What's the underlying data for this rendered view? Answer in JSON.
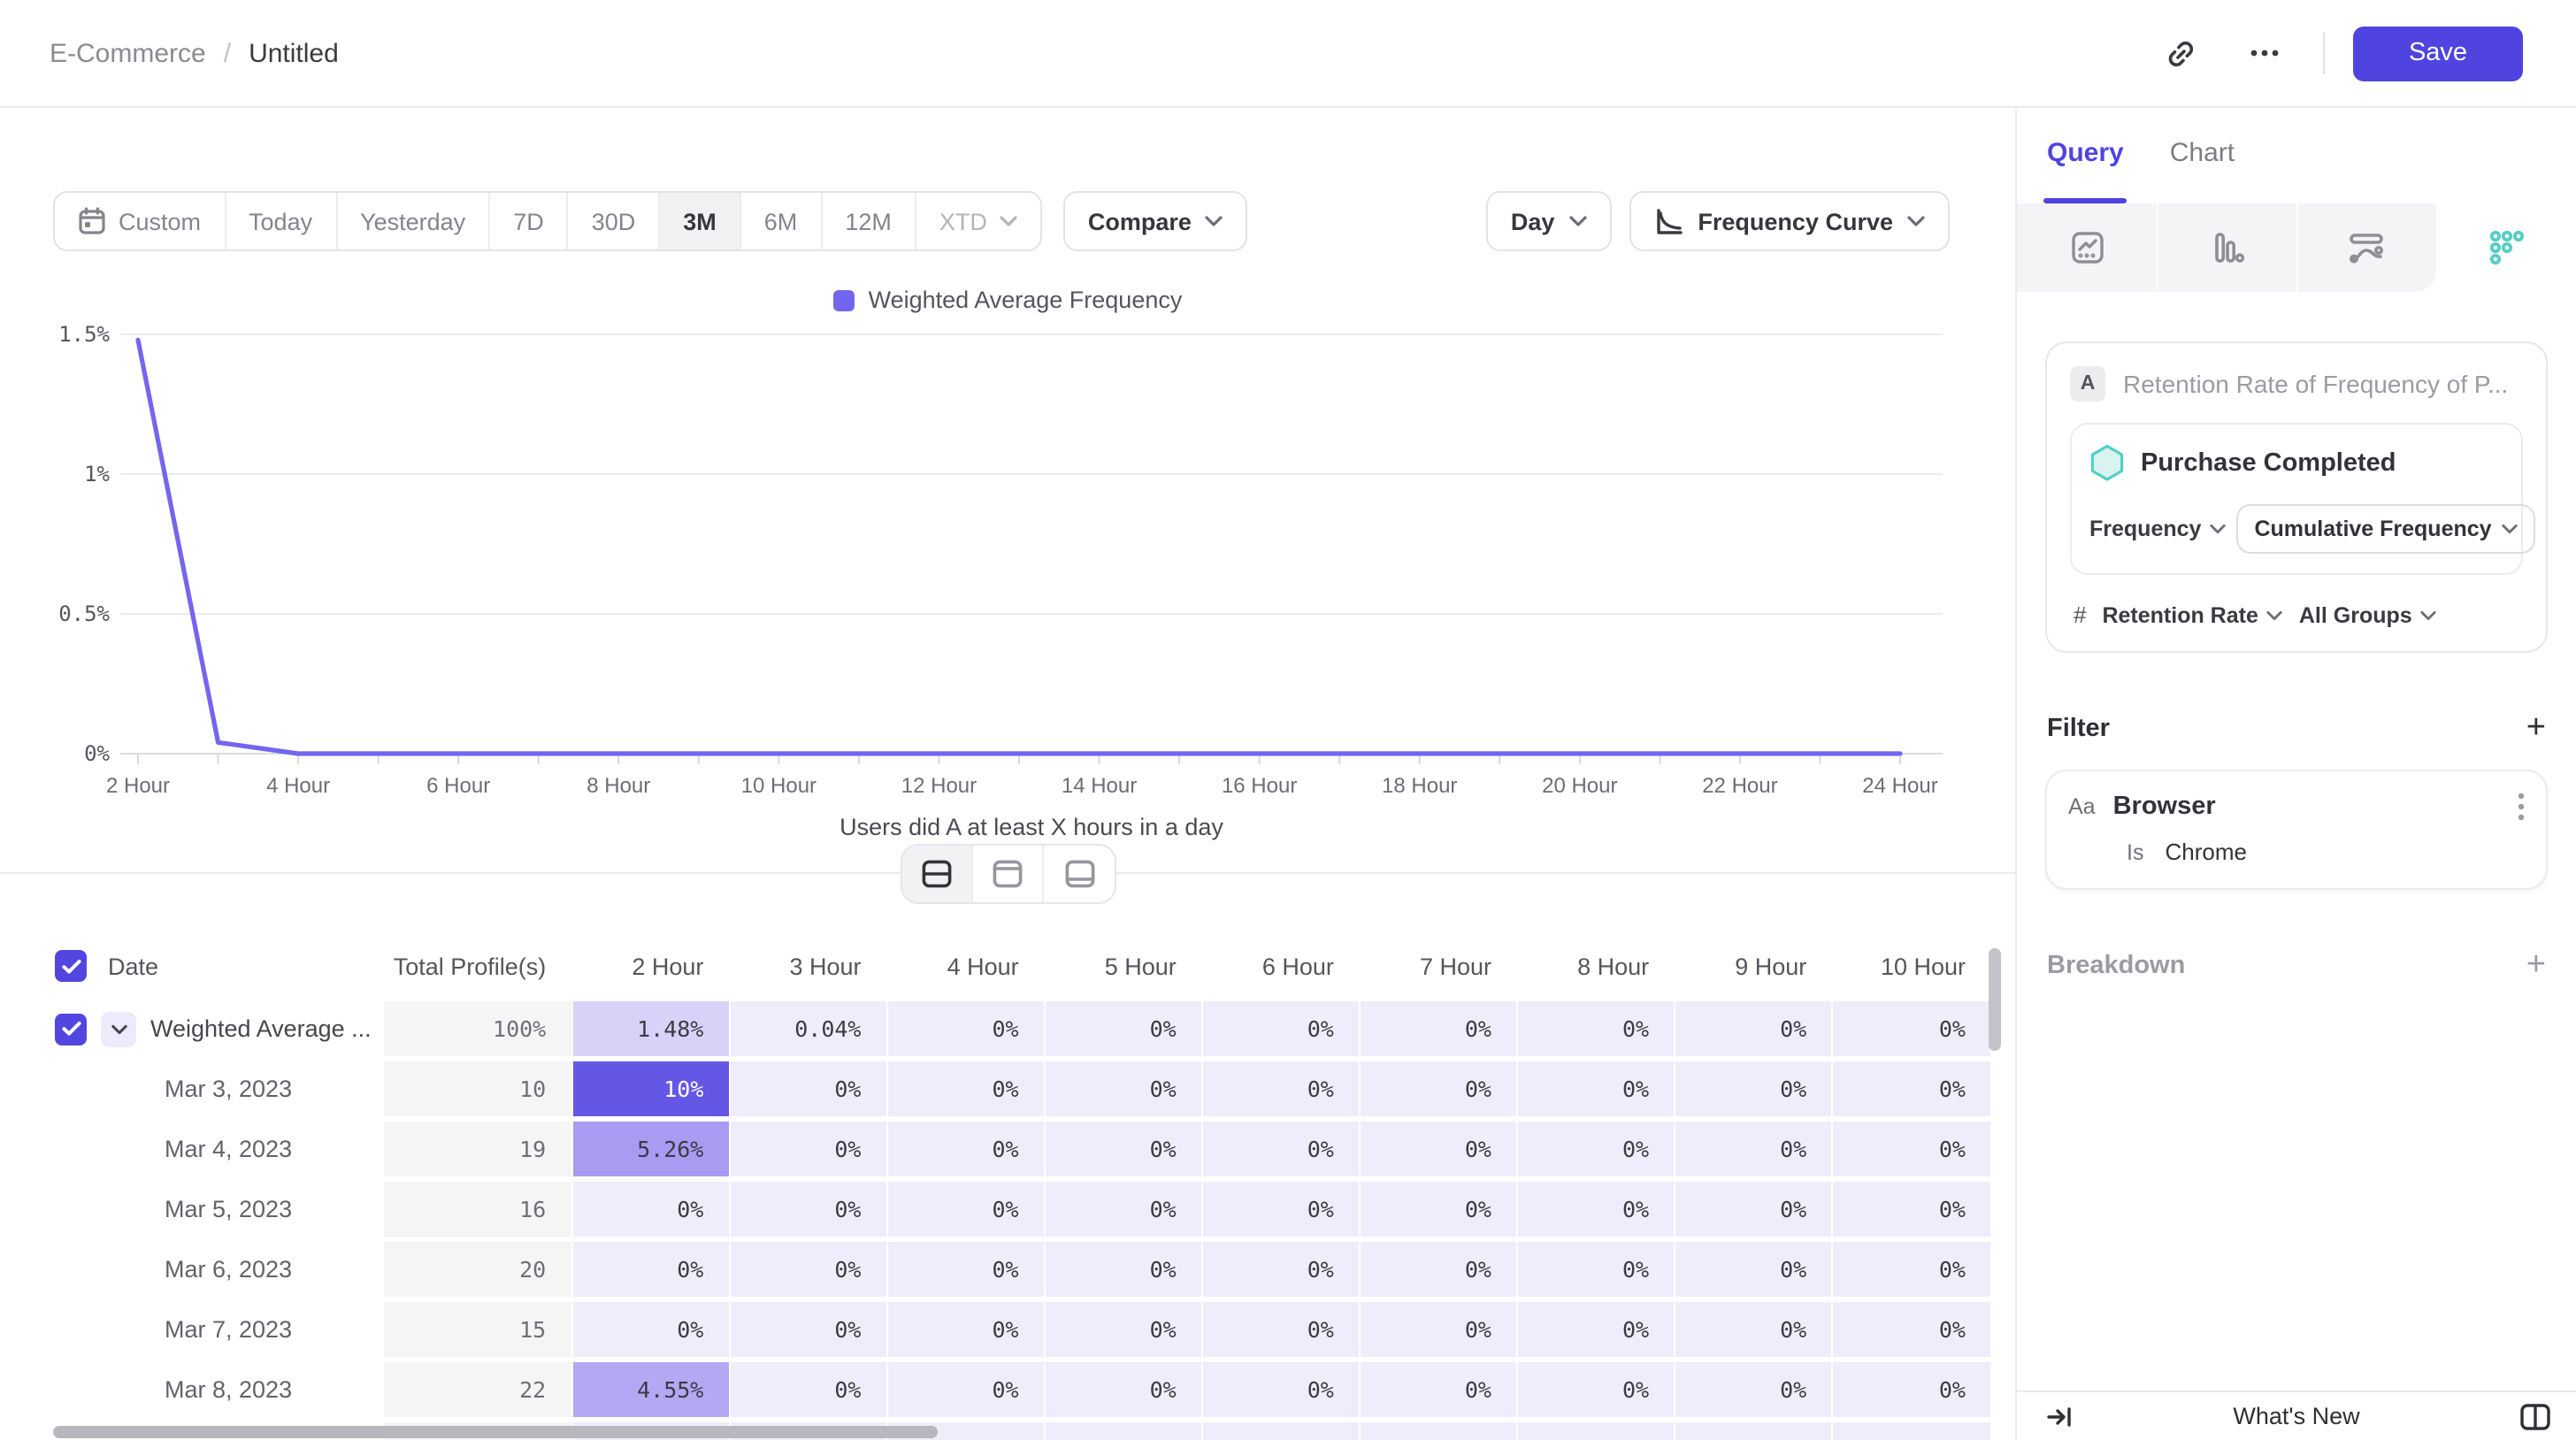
{
  "header": {
    "breadcrumb": {
      "root": "E-Commerce",
      "separator": "/",
      "current": "Untitled"
    },
    "save_label": "Save",
    "accent_color": "#4f44e0"
  },
  "toolbar": {
    "date_ranges": [
      "Custom",
      "Today",
      "Yesterday",
      "7D",
      "30D",
      "3M",
      "6M",
      "12M",
      "XTD"
    ],
    "selected_range": "3M",
    "compare_label": "Compare",
    "granularity_label": "Day",
    "chart_type_label": "Frequency Curve"
  },
  "chart_data": {
    "type": "line",
    "title": "",
    "xlabel": "Users did A at least X hours in a day",
    "legend_position": "top-center",
    "grid": "horizontal",
    "line_color": "#7366ee",
    "ylim": [
      0,
      1.5
    ],
    "y_tick_labels": [
      "0%",
      "0.5%",
      "1%",
      "1.5%"
    ],
    "x_tick_labels": [
      "2 Hour",
      "4 Hour",
      "6 Hour",
      "8 Hour",
      "10 Hour",
      "12 Hour",
      "14 Hour",
      "16 Hour",
      "18 Hour",
      "20 Hour",
      "22 Hour",
      "24 Hour"
    ],
    "series": [
      {
        "name": "Weighted Average Frequency",
        "x": [
          2,
          3,
          4,
          5,
          6,
          7,
          8,
          9,
          10,
          11,
          12,
          13,
          14,
          15,
          16,
          17,
          18,
          19,
          20,
          21,
          22,
          23,
          24
        ],
        "y": [
          1.48,
          0.04,
          0,
          0,
          0,
          0,
          0,
          0,
          0,
          0,
          0,
          0,
          0,
          0,
          0,
          0,
          0,
          0,
          0,
          0,
          0,
          0,
          0
        ]
      }
    ]
  },
  "table": {
    "headers": [
      "Date",
      "Total Profile(s)",
      "2 Hour",
      "3 Hour",
      "4 Hour",
      "5 Hour",
      "6 Hour",
      "7 Hour",
      "8 Hour",
      "9 Hour",
      "10 Hour"
    ],
    "rows": [
      {
        "label": "Weighted Average ...",
        "expandable": true,
        "checked": true,
        "total": "100%",
        "cells": [
          "1.48%",
          "0.04%",
          "0%",
          "0%",
          "0%",
          "0%",
          "0%",
          "0%",
          "0%"
        ]
      },
      {
        "label": "Mar 3, 2023",
        "total": "10",
        "cells": [
          "10%",
          "0%",
          "0%",
          "0%",
          "0%",
          "0%",
          "0%",
          "0%",
          "0%"
        ]
      },
      {
        "label": "Mar 4, 2023",
        "total": "19",
        "cells": [
          "5.26%",
          "0%",
          "0%",
          "0%",
          "0%",
          "0%",
          "0%",
          "0%",
          "0%"
        ]
      },
      {
        "label": "Mar 5, 2023",
        "total": "16",
        "cells": [
          "0%",
          "0%",
          "0%",
          "0%",
          "0%",
          "0%",
          "0%",
          "0%",
          "0%"
        ]
      },
      {
        "label": "Mar 6, 2023",
        "total": "20",
        "cells": [
          "0%",
          "0%",
          "0%",
          "0%",
          "0%",
          "0%",
          "0%",
          "0%",
          "0%"
        ]
      },
      {
        "label": "Mar 7, 2023",
        "total": "15",
        "cells": [
          "0%",
          "0%",
          "0%",
          "0%",
          "0%",
          "0%",
          "0%",
          "0%",
          "0%"
        ]
      },
      {
        "label": "Mar 8, 2023",
        "total": "22",
        "cells": [
          "4.55%",
          "0%",
          "0%",
          "0%",
          "0%",
          "0%",
          "0%",
          "0%",
          "0%"
        ]
      },
      {
        "label": "",
        "total": "",
        "cells": [
          "",
          "",
          "",
          "",
          "",
          "",
          "",
          "",
          ""
        ]
      }
    ],
    "heat_colors": {
      "0%": "#efedfb",
      "": "#efedfb",
      "0.04%": "#efedfb",
      "1.48%": "#d9d2f8",
      "4.55%": "#b4a8f4",
      "5.26%": "#a89bf2",
      "10%": "#6457e6"
    },
    "light_text_values": [
      "10%"
    ],
    "total_col_color": "#f5f5f6"
  },
  "panel": {
    "tabs": [
      {
        "label": "Query",
        "active": true
      },
      {
        "label": "Chart",
        "active": false
      }
    ],
    "report_icons": [
      "insights-icon",
      "funnels-icon",
      "flows-icon",
      "retention-icon"
    ],
    "retention_icon_color": "#57cdc4",
    "query": {
      "step_letter": "A",
      "step_title": "Retention Rate of Frequency of P...",
      "event_name": "Purchase Completed",
      "frequency_label": "Frequency",
      "frequency_value": "Cumulative Frequency",
      "measure_prefix": "#",
      "measure_value": "Retention Rate",
      "groups_value": "All Groups"
    },
    "filter": {
      "title": "Filter",
      "property_type": "Aa",
      "property": "Browser",
      "operator": "Is",
      "value": "Chrome"
    },
    "breakdown_title": "Breakdown",
    "whats_new_label": "What's New"
  }
}
